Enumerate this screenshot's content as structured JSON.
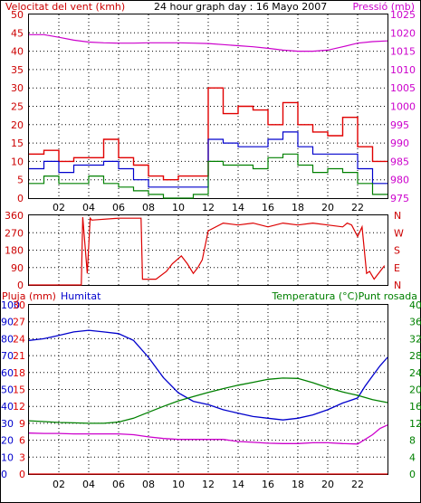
{
  "title": "24 hour graph day : 16 Mayo 2007",
  "colors": {
    "wind_gust": "#e00000",
    "wind_avg": "#0000cc",
    "wind_low": "#008000",
    "pressure": "#cc00cc",
    "direction": "#dd0000",
    "rain": "#dd0000",
    "humidity": "#0000cc",
    "temperature": "#008000",
    "dewpoint": "#cc00cc",
    "axis_text_left": "#cc0000",
    "axis_text_right_top": "#cc00cc",
    "axis_text_right_bottom": "#008000",
    "border": "#000000"
  },
  "chart_data": [
    {
      "type": "line",
      "panel": "wind_pressure",
      "left_label": "Velocitat del vent (kmh)",
      "right_label": "Pressió (mb)",
      "x_ticks": [
        "02",
        "04",
        "06",
        "08",
        "10",
        "12",
        "14",
        "16",
        "18",
        "20",
        "22"
      ],
      "x_range_hours": [
        0,
        24
      ],
      "y_left_range": [
        0,
        50
      ],
      "y_left_ticks": [
        "0",
        "5",
        "10",
        "15",
        "20",
        "25",
        "30",
        "35",
        "40",
        "45",
        "50"
      ],
      "y_right_range": [
        975,
        1025
      ],
      "y_right_ticks": [
        "975",
        "980",
        "985",
        "990",
        "995",
        "1000",
        "1005",
        "1010",
        "1015",
        "1020",
        "1025"
      ],
      "series": [
        {
          "name": "",
          "key": "pressure",
          "axis": "right",
          "x": [
            0,
            1,
            2,
            3,
            4,
            5,
            6,
            7,
            8,
            9,
            10,
            11,
            12,
            13,
            14,
            15,
            16,
            17,
            18,
            19,
            20,
            21,
            22,
            23,
            24
          ],
          "y": [
            1019.5,
            1019.5,
            1018.8,
            1018,
            1017.5,
            1017.3,
            1017.2,
            1017.2,
            1017.3,
            1017.3,
            1017.3,
            1017.2,
            1017.1,
            1016.8,
            1016.5,
            1016.2,
            1015.8,
            1015.3,
            1015,
            1015,
            1015.3,
            1016.2,
            1017.2,
            1017.6,
            1017.8
          ]
        },
        {
          "name": "",
          "key": "wind_gust",
          "axis": "left",
          "x": [
            0,
            1,
            2,
            3,
            4,
            5,
            6,
            7,
            8,
            9,
            10,
            11,
            12,
            13,
            14,
            15,
            16,
            17,
            18,
            19,
            20,
            21,
            22,
            23,
            24
          ],
          "y": [
            12,
            13,
            10,
            11,
            11,
            16,
            11,
            9,
            6,
            5,
            6,
            6,
            30,
            23,
            25,
            24,
            20,
            26,
            20,
            18,
            17,
            22,
            14,
            10,
            12
          ]
        },
        {
          "name": "",
          "key": "wind_avg",
          "axis": "left",
          "x": [
            0,
            1,
            2,
            3,
            4,
            5,
            6,
            7,
            8,
            9,
            10,
            11,
            12,
            13,
            14,
            15,
            16,
            17,
            18,
            19,
            20,
            21,
            22,
            23,
            24
          ],
          "y": [
            8,
            10,
            7,
            9,
            9,
            10,
            8,
            5,
            3,
            3,
            3,
            3,
            16,
            15,
            14,
            14,
            16,
            18,
            14,
            12,
            12,
            12,
            8,
            4,
            7
          ]
        },
        {
          "name": "",
          "key": "wind_low",
          "axis": "left",
          "x": [
            0,
            1,
            2,
            3,
            4,
            5,
            6,
            7,
            8,
            9,
            10,
            11,
            12,
            13,
            14,
            15,
            16,
            17,
            18,
            19,
            20,
            21,
            22,
            23,
            24
          ],
          "y": [
            4,
            6,
            4,
            4,
            6,
            4,
            3,
            2,
            1,
            0,
            0,
            1,
            10,
            9,
            9,
            8,
            11,
            12,
            9,
            7,
            8,
            7,
            4,
            1,
            3
          ]
        }
      ]
    },
    {
      "type": "line",
      "panel": "wind_direction",
      "right_label": "N W S E N",
      "x_range_hours": [
        0,
        24
      ],
      "y_range": [
        0,
        360
      ],
      "y_ticks": [
        "0",
        "90",
        "180",
        "270",
        "360"
      ],
      "compass": [
        "N",
        "W",
        "S",
        "E",
        "N"
      ],
      "series": [
        {
          "name": "",
          "key": "direction",
          "x": [
            0,
            3.5,
            3.6,
            3.9,
            4.1,
            4.2,
            6,
            6.05,
            7.5,
            7.6,
            8.5,
            9.2,
            9.6,
            10.2,
            10.6,
            11,
            11.3,
            11.6,
            12,
            13,
            14,
            15,
            16,
            17,
            18,
            19,
            20,
            21,
            21.3,
            21.6,
            22,
            22.3,
            22.6,
            22.8,
            23.1,
            23.4,
            23.8
          ],
          "y": [
            0,
            0,
            350,
            60,
            345,
            335,
            345,
            345,
            345,
            30,
            30,
            70,
            110,
            150,
            110,
            60,
            90,
            130,
            280,
            320,
            310,
            320,
            300,
            320,
            310,
            320,
            310,
            300,
            320,
            310,
            250,
            300,
            60,
            70,
            30,
            60,
            100
          ]
        }
      ]
    },
    {
      "type": "line",
      "panel": "rain_humidity_temp",
      "left_labels": [
        "Pluja (mm)",
        "Humitat"
      ],
      "right_label": "Temperatura (°C)Punt rosada",
      "x_range_hours": [
        0,
        24
      ],
      "y_left_range": [
        0,
        100
      ],
      "y_left_ticks": [
        "0",
        "10",
        "20",
        "30",
        "40",
        "50",
        "60",
        "70",
        "80",
        "90",
        "100"
      ],
      "y_left_ticks_inner": [
        "0",
        "3",
        "6",
        "9",
        "12",
        "15",
        "18",
        "21",
        "24",
        "27",
        "30"
      ],
      "y_right_range": [
        0,
        40
      ],
      "y_right_ticks": [
        "0",
        "4",
        "8",
        "12",
        "16",
        "20",
        "24",
        "28",
        "32",
        "36",
        "40"
      ],
      "series": [
        {
          "name": "",
          "key": "rain",
          "axis": "left",
          "x": [
            0,
            24
          ],
          "y": [
            0,
            0
          ]
        },
        {
          "name": "",
          "key": "humidity",
          "axis": "left",
          "x": [
            0,
            1,
            2,
            3,
            4,
            5,
            6,
            7,
            8,
            9,
            10,
            11,
            12,
            13,
            14,
            15,
            16,
            17,
            18,
            19,
            20,
            21,
            22,
            22.5,
            23,
            23.5,
            24
          ],
          "y": [
            79,
            80,
            82,
            84,
            85,
            84,
            83,
            79,
            69,
            57,
            48,
            43,
            41,
            38,
            36,
            34,
            33,
            32,
            33,
            35,
            38,
            42,
            45,
            52,
            58,
            64,
            69
          ]
        },
        {
          "name": "",
          "key": "temperature",
          "axis": "right",
          "x": [
            0,
            1,
            2,
            3,
            4,
            5,
            6,
            7,
            8,
            9,
            10,
            11,
            12,
            13,
            14,
            15,
            16,
            17,
            18,
            19,
            20,
            21,
            22,
            23,
            24
          ],
          "y": [
            12.6,
            12.4,
            12.2,
            12.1,
            12,
            12,
            12.3,
            13.2,
            14.6,
            16,
            17.3,
            18.3,
            19.3,
            20.2,
            21,
            21.7,
            22.4,
            22.7,
            22.6,
            21.6,
            20.4,
            19.4,
            18.6,
            17.6,
            16.9
          ]
        },
        {
          "name": "",
          "key": "dewpoint",
          "axis": "right",
          "x": [
            0,
            1,
            2,
            3,
            4,
            5,
            6,
            7,
            8,
            9,
            10,
            11,
            12,
            13,
            14,
            15,
            16,
            17,
            18,
            19,
            20,
            21,
            22,
            23,
            23.5,
            24
          ],
          "y": [
            9.7,
            9.6,
            9.6,
            9.5,
            9.5,
            9.5,
            9.5,
            9.3,
            8.8,
            8.4,
            8.2,
            8.2,
            8.2,
            8.2,
            7.7,
            7.5,
            7.3,
            7.2,
            7.2,
            7.4,
            7.4,
            7.2,
            7.1,
            9.3,
            10.8,
            11.6
          ]
        }
      ]
    }
  ]
}
